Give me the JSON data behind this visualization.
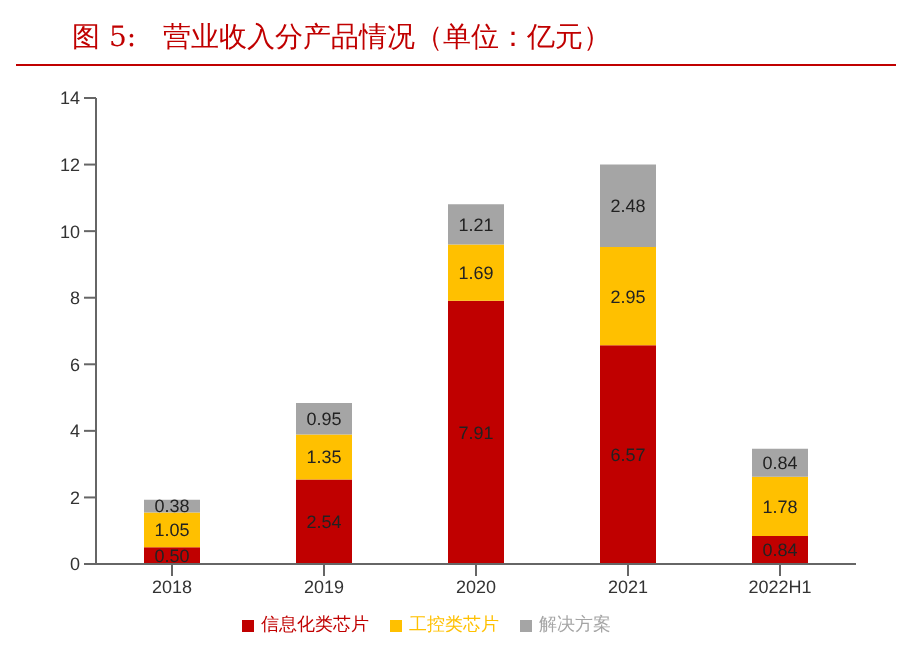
{
  "chart_data": {
    "type": "bar",
    "title": "图 5:   营业收入分产品情况（单位：亿元）",
    "categories": [
      "2018",
      "2019",
      "2020",
      "2021",
      "2022H1"
    ],
    "stacked": true,
    "ylim": [
      0,
      14
    ],
    "yticks": [
      0,
      2,
      4,
      6,
      8,
      10,
      12,
      14
    ],
    "grid": false,
    "legend": "bottom",
    "series": [
      {
        "name": "信息化类芯片",
        "color": "#c00000",
        "values": [
          0.5,
          2.54,
          7.91,
          6.57,
          0.84
        ],
        "value_labels": [
          "0.50",
          "2.54",
          "7.91",
          "6.57",
          "0.84"
        ]
      },
      {
        "name": "工控类芯片",
        "color": "#ffc000",
        "values": [
          1.05,
          1.35,
          1.69,
          2.95,
          1.78
        ],
        "value_labels": [
          "1.05",
          "1.35",
          "1.69",
          "2.95",
          "1.78"
        ]
      },
      {
        "name": "解决方案",
        "color": "#a5a5a5",
        "values": [
          0.38,
          0.95,
          1.21,
          2.48,
          0.84
        ],
        "value_labels": [
          "0.38",
          "0.95",
          "1.21",
          "2.48",
          "0.84"
        ]
      }
    ]
  }
}
